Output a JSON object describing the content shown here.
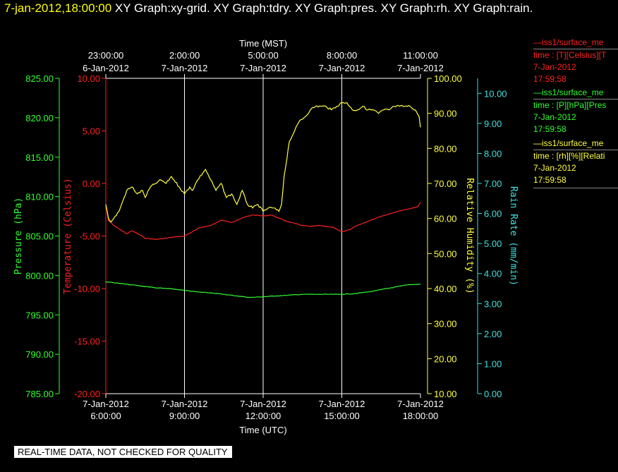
{
  "title": {
    "timestamp": "7-jan-2012,18:00:00",
    "graphs": " XY Graph:xy-grid.  XY Graph:tdry.  XY Graph:pres.  XY Graph:rh.  XY Graph:rain."
  },
  "footer": "REAL-TIME DATA, NOT CHECKED FOR QUALITY",
  "legend": [
    {
      "color": "#ff2020",
      "line1": "—iss1/surface_me",
      "line2": "time : [T][Celsius][T",
      "line3": "7-Jan-2012",
      "line4": "17:59:58"
    },
    {
      "color": "#30ff30",
      "line1": "—iss1/surface_me",
      "line2": "time : [P][hPa][Pres",
      "line3": "7-Jan-2012",
      "line4": "17:59:58"
    },
    {
      "color": "#ffff40",
      "line1": "—iss1/surface_me",
      "line2": "time : [rh][%][Relati",
      "line3": "7-Jan-2012",
      "line4": "17:59:58"
    }
  ],
  "chart_data": {
    "type": "line",
    "x_top_label": "Time (MST)",
    "x_bottom_label": "Time (UTC)",
    "x_range_hours_utc": [
      6,
      18
    ],
    "top_ticks": [
      {
        "t1": "23:00:00",
        "t2": "6-Jan-2012"
      },
      {
        "t1": "2:00:00",
        "t2": "7-Jan-2012"
      },
      {
        "t1": "5:00:00",
        "t2": "7-Jan-2012"
      },
      {
        "t1": "8:00:00",
        "t2": "7-Jan-2012"
      },
      {
        "t1": "11:00:00",
        "t2": "7-Jan-2012"
      }
    ],
    "bottom_ticks": [
      {
        "t1": "7-Jan-2012",
        "t2": "6:00:00"
      },
      {
        "t1": "7-Jan-2012",
        "t2": "9:00:00"
      },
      {
        "t1": "7-Jan-2012",
        "t2": "12:00:00"
      },
      {
        "t1": "7-Jan-2012",
        "t2": "15:00:00"
      },
      {
        "t1": "7-Jan-2012",
        "t2": "18:00:00"
      }
    ],
    "grid": true,
    "axes": {
      "pressure": {
        "label": "Pressure (hPa)",
        "color": "#30ff30",
        "range": [
          785,
          825
        ],
        "ticks": [
          "785.00",
          "790.00",
          "795.00",
          "800.00",
          "805.00",
          "810.00",
          "815.00",
          "820.00",
          "825.00"
        ]
      },
      "temperature": {
        "label": "Temperature (Celsius)",
        "color": "#ff2020",
        "range": [
          -20,
          10
        ],
        "ticks": [
          "-20.00",
          "-15.00",
          "-10.00",
          "-5.00",
          "0.00",
          "5.00",
          "10.00"
        ]
      },
      "rh": {
        "label": "Relative Humidity (%)",
        "color": "#ffff40",
        "range": [
          10,
          100
        ],
        "ticks": [
          "10.00",
          "20.00",
          "30.00",
          "40.00",
          "50.00",
          "60.00",
          "70.00",
          "80.00",
          "90.00",
          "100.00"
        ]
      },
      "rain": {
        "label": "Rain Rate (mm/min)",
        "color": "#40e0e0",
        "range": [
          0,
          10.5
        ],
        "ticks": [
          "0.00",
          "1.00",
          "2.00",
          "3.00",
          "4.00",
          "5.00",
          "6.00",
          "7.00",
          "8.00",
          "9.00",
          "10.00"
        ]
      }
    },
    "series": [
      {
        "name": "iss1/surface_me T",
        "axis": "temperature",
        "color": "#ff2020",
        "x": [
          6.0,
          6.1,
          6.3,
          6.5,
          6.8,
          7.0,
          7.3,
          7.5,
          7.8,
          8.0,
          8.3,
          8.6,
          9.0,
          9.3,
          9.6,
          10.0,
          10.4,
          10.8,
          11.0,
          11.3,
          11.6,
          12.0,
          12.3,
          12.6,
          12.9,
          13.2,
          13.5,
          13.8,
          14.1,
          14.4,
          14.7,
          15.0,
          15.3,
          15.6,
          16.0,
          16.4,
          16.8,
          17.2,
          17.6,
          17.9,
          18.0
        ],
        "y": [
          -2.0,
          -3.5,
          -4.0,
          -4.3,
          -4.8,
          -4.5,
          -4.9,
          -5.2,
          -5.3,
          -5.3,
          -5.2,
          -5.1,
          -5.0,
          -4.6,
          -4.2,
          -4.0,
          -3.5,
          -3.7,
          -3.5,
          -3.2,
          -3.0,
          -3.1,
          -3.0,
          -3.3,
          -3.6,
          -3.8,
          -4.0,
          -4.1,
          -4.0,
          -4.1,
          -4.2,
          -4.6,
          -4.4,
          -4.0,
          -3.6,
          -3.2,
          -2.9,
          -2.6,
          -2.4,
          -2.2,
          -1.8
        ]
      },
      {
        "name": "iss1/surface_me P",
        "axis": "pressure",
        "color": "#30ff30",
        "x": [
          6.0,
          6.5,
          7.0,
          7.5,
          8.0,
          8.5,
          9.0,
          9.5,
          10.0,
          10.5,
          11.0,
          11.5,
          12.0,
          12.5,
          13.0,
          13.5,
          14.0,
          14.5,
          15.0,
          15.5,
          16.0,
          16.5,
          17.0,
          17.5,
          18.0
        ],
        "y": [
          799.2,
          799.0,
          798.8,
          798.6,
          798.4,
          798.3,
          798.1,
          797.9,
          797.8,
          797.6,
          797.4,
          797.2,
          797.3,
          797.4,
          797.5,
          797.6,
          797.6,
          797.6,
          797.6,
          797.7,
          797.9,
          798.2,
          798.5,
          798.8,
          798.9
        ]
      },
      {
        "name": "iss1/surface_me rh",
        "axis": "rh",
        "color": "#ffff40",
        "x": [
          6.0,
          6.1,
          6.2,
          6.3,
          6.5,
          6.7,
          6.8,
          7.0,
          7.2,
          7.4,
          7.5,
          7.7,
          7.9,
          8.1,
          8.3,
          8.5,
          8.6,
          8.8,
          9.0,
          9.2,
          9.3,
          9.5,
          9.7,
          9.8,
          10.0,
          10.2,
          10.4,
          10.6,
          10.8,
          11.0,
          11.2,
          11.4,
          11.6,
          11.8,
          12.0,
          12.2,
          12.4,
          12.6,
          12.7,
          12.8,
          13.0,
          13.2,
          13.4,
          13.6,
          13.8,
          14.0,
          14.2,
          14.4,
          14.6,
          14.8,
          15.0,
          15.2,
          15.4,
          15.6,
          15.8,
          16.0,
          16.2,
          16.4,
          16.6,
          16.8,
          17.0,
          17.2,
          17.4,
          17.6,
          17.8,
          17.95,
          18.0
        ],
        "y": [
          64,
          60,
          59,
          60,
          62,
          66,
          68,
          69,
          67,
          68,
          66,
          69,
          70,
          71,
          70,
          72,
          71,
          69,
          67,
          69,
          68,
          71,
          73,
          74,
          71,
          68,
          70,
          66,
          67,
          64,
          68,
          64,
          63,
          64,
          62,
          63,
          63,
          62,
          64,
          72,
          82,
          85,
          88,
          89,
          91,
          92,
          92,
          92,
          91,
          92,
          93,
          93,
          91,
          91,
          92,
          91,
          91,
          90,
          91,
          91,
          92,
          92,
          92,
          92,
          91,
          89,
          86
        ]
      }
    ]
  }
}
